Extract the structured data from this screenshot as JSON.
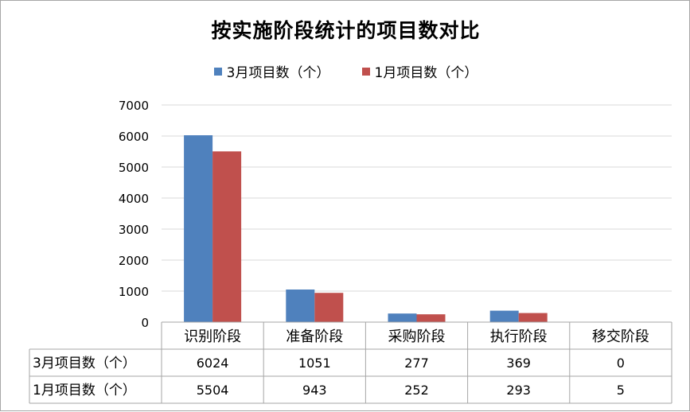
{
  "chart_data": {
    "type": "bar",
    "title": "按实施阶段统计的项目数对比",
    "categories": [
      "识别阶段",
      "准备阶段",
      "采购阶段",
      "执行阶段",
      "移交阶段"
    ],
    "series": [
      {
        "name": "3月项目数（个）",
        "values": [
          6024,
          1051,
          277,
          369,
          0
        ],
        "color": "#4f81bd"
      },
      {
        "name": "1月项目数（个）",
        "values": [
          5504,
          943,
          252,
          293,
          5
        ],
        "color": "#c0504d"
      }
    ],
    "ylim": [
      0,
      7000
    ],
    "yticks": [
      "0",
      "1000",
      "2000",
      "3000",
      "4000",
      "5000",
      "6000",
      "7000"
    ],
    "grid": true,
    "legend": "top",
    "data_table": true
  }
}
